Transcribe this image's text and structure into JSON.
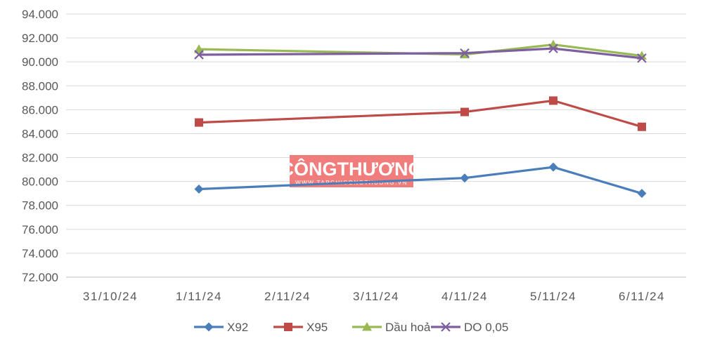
{
  "chart_data": {
    "type": "line",
    "categories": [
      "31/10/24",
      "1/11/24",
      "2/11/24",
      "3/11/24",
      "4/11/24",
      "5/11/24",
      "6/11/24"
    ],
    "ylim": [
      72000,
      94000
    ],
    "yticks": [
      72000,
      74000,
      76000,
      78000,
      80000,
      82000,
      84000,
      86000,
      88000,
      90000,
      92000,
      94000
    ],
    "ytick_labels": [
      "72.000",
      "74.000",
      "76.000",
      "78.000",
      "80.000",
      "82.000",
      "84.000",
      "86.000",
      "88.000",
      "90.000",
      "92.000",
      "94.000"
    ],
    "grid": true,
    "legend_position": "bottom",
    "series": [
      {
        "name": "X92",
        "color": "#4a7ebb",
        "marker": "diamond",
        "values": [
          null,
          79360,
          null,
          null,
          80290,
          81200,
          79000
        ]
      },
      {
        "name": "X95",
        "color": "#be4b48",
        "marker": "square",
        "values": [
          null,
          84930,
          null,
          null,
          85810,
          86760,
          84570
        ]
      },
      {
        "name": "Dầu hoả",
        "color": "#98b954",
        "marker": "triangle",
        "values": [
          null,
          91060,
          null,
          null,
          90620,
          91440,
          90510
        ]
      },
      {
        "name": "DO 0,05",
        "color": "#7d5fa0",
        "marker": "x",
        "values": [
          null,
          90600,
          null,
          null,
          90730,
          91120,
          90310
        ]
      }
    ]
  },
  "watermark": {
    "text": "CÔNGTHƯƠNG",
    "url": "WWW.TAPCHICONGTHUONG.VN",
    "color": "#f07c7c"
  }
}
